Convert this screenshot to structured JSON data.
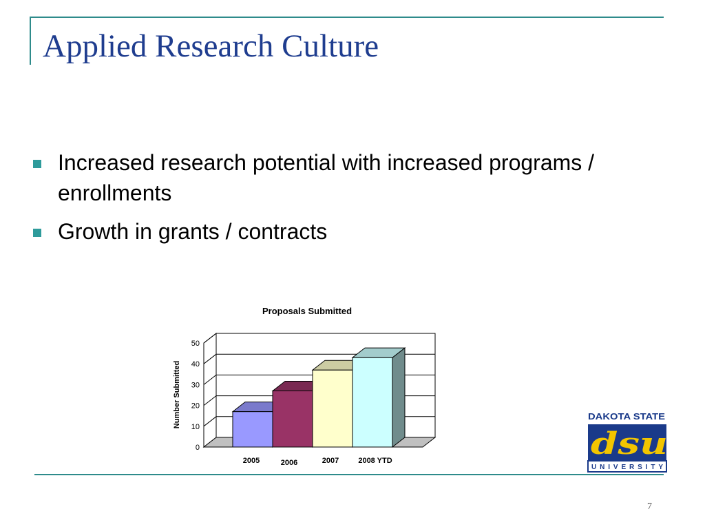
{
  "slide": {
    "title": "Applied Research Culture",
    "bullets": [
      "Increased research potential with increased programs / enrollments",
      "Growth in grants / contracts"
    ],
    "page_number": "7",
    "accent_color": "#2e8b8b",
    "title_color": "#1f3d8f"
  },
  "logo": {
    "line1": "DAKOTA STATE",
    "monogram": "dsu",
    "line2": "UNIVERSITY",
    "colors": {
      "navy": "#1a3a8a",
      "gold": "#f2c500"
    }
  },
  "chart_data": {
    "type": "bar",
    "title": "Proposals Submitted",
    "ylabel": "Number Submitted",
    "xlabel": "",
    "categories": [
      "2005",
      "2006",
      "2007",
      "2008 YTD"
    ],
    "values": [
      17,
      27,
      37,
      43
    ],
    "ylim": [
      0,
      50
    ],
    "yticks": [
      0,
      10,
      20,
      30,
      40,
      50
    ],
    "grid": true,
    "style": "3d",
    "colors": [
      "#9999ff",
      "#993366",
      "#ffffcc",
      "#ccffff"
    ]
  }
}
